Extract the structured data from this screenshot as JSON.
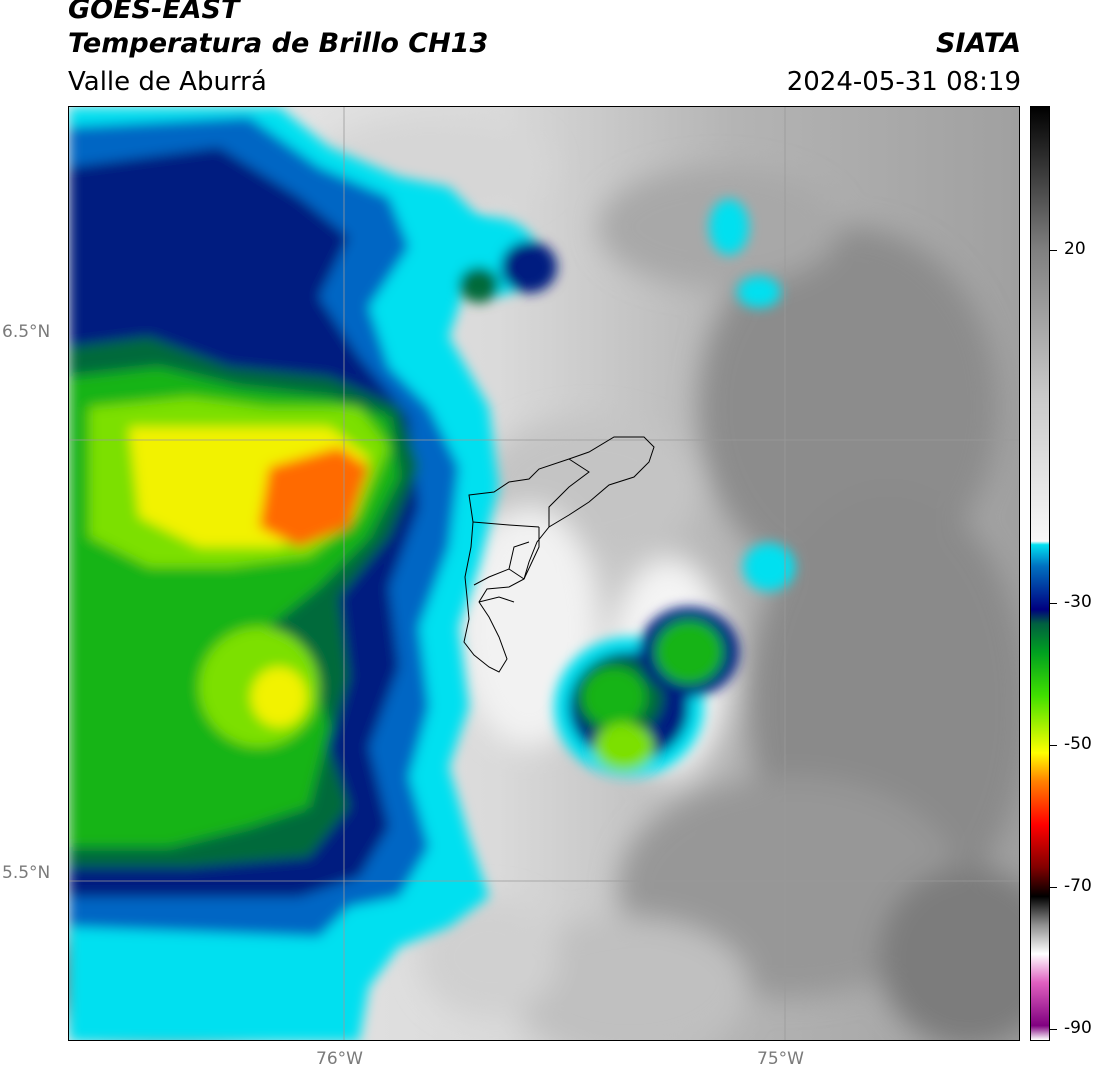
{
  "header": {
    "satellite": "GOES-EAST",
    "product": "Temperatura de Brillo CH13",
    "region": "Valle de Aburrá",
    "organization": "SIATA",
    "timestamp": "2024-05-31 08:19"
  },
  "axes": {
    "lat_labels": [
      "6.5°N",
      "5.5°N"
    ],
    "lon_labels": [
      "76°W",
      "75°W"
    ]
  },
  "colorbar": {
    "labels": [
      "20",
      "-30",
      "-50",
      "-70",
      "-90"
    ],
    "min": -90,
    "max": 40,
    "stops": [
      {
        "t": -90,
        "c": "#ffffff"
      },
      {
        "t": -88,
        "c": "#800080"
      },
      {
        "t": -82,
        "c": "#e060c0"
      },
      {
        "t": -78,
        "c": "#ffffff"
      },
      {
        "t": -74,
        "c": "#909090"
      },
      {
        "t": -70,
        "c": "#000000"
      },
      {
        "t": -66,
        "c": "#800000"
      },
      {
        "t": -60,
        "c": "#ff0000"
      },
      {
        "t": -54,
        "c": "#ff8000"
      },
      {
        "t": -50,
        "c": "#ffff00"
      },
      {
        "t": -42,
        "c": "#40e000"
      },
      {
        "t": -36,
        "c": "#00a020"
      },
      {
        "t": -32,
        "c": "#006040"
      },
      {
        "t": -30,
        "c": "#000080"
      },
      {
        "t": -24,
        "c": "#0070c0"
      },
      {
        "t": -21,
        "c": "#00e0f0"
      },
      {
        "t": -20.5,
        "c": "#f8f8f8"
      },
      {
        "t": 0,
        "c": "#c8c8c8"
      },
      {
        "t": 20,
        "c": "#808080"
      },
      {
        "t": 35,
        "c": "#202020"
      },
      {
        "t": 40,
        "c": "#000000"
      }
    ]
  },
  "colors": {
    "cold_core": "#ff6a00",
    "yellow": "#f2f200",
    "lime": "#7ce000",
    "green": "#14b414",
    "dark_green": "#006a3a",
    "navy": "#001a80",
    "blue": "#0066c4",
    "cyan": "#00e0f0",
    "light_gray": "#e6e6e6",
    "mid_gray": "#bdbdbd",
    "dark_gray": "#8a8a8a",
    "grid": "#9a9a9a",
    "boundary": "#000000"
  }
}
